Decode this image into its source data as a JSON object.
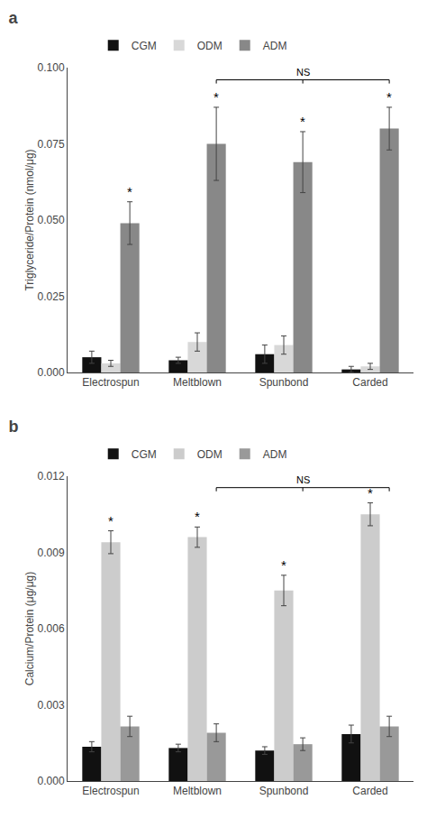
{
  "chart_data": [
    {
      "type": "bar",
      "title": "a",
      "ylabel": "Triglyceride/Protein (nmol/μg)",
      "categories": [
        "Electrospun",
        "Meltblown",
        "Spunbond",
        "Carded"
      ],
      "series": [
        {
          "name": "CGM",
          "color": "#111111",
          "values": [
            0.005,
            0.004,
            0.006,
            0.001
          ],
          "errors": [
            0.002,
            0.001,
            0.003,
            0.001
          ]
        },
        {
          "name": "ODM",
          "color": "#d8d8d8",
          "values": [
            0.003,
            0.01,
            0.009,
            0.002
          ],
          "errors": [
            0.001,
            0.003,
            0.003,
            0.001
          ]
        },
        {
          "name": "ADM",
          "color": "#888888",
          "values": [
            0.049,
            0.075,
            0.069,
            0.08
          ],
          "errors": [
            0.007,
            0.012,
            0.01,
            0.007
          ]
        }
      ],
      "ylim": [
        0,
        0.1
      ],
      "yticks": [
        {
          "value": 0.0,
          "label": "0.000"
        },
        {
          "value": 0.025,
          "label": "0.025"
        },
        {
          "value": 0.05,
          "label": "0.050"
        },
        {
          "value": 0.075,
          "label": "0.075"
        },
        {
          "value": 0.1,
          "label": "0.100"
        }
      ],
      "grid": false,
      "legend": "top",
      "annotations": [
        {
          "text": "*",
          "category": "Electrospun",
          "series": "ADM"
        },
        {
          "text": "*",
          "category": "Meltblown",
          "series": "ADM"
        },
        {
          "text": "*",
          "category": "Spunbond",
          "series": "ADM"
        },
        {
          "text": "*",
          "category": "Carded",
          "series": "ADM"
        },
        {
          "text": "NS",
          "y": 0.096,
          "from": "Meltblown",
          "to": "Carded",
          "series": "ADM"
        }
      ]
    },
    {
      "type": "bar",
      "title": "b",
      "ylabel": "Calcium/Protein (μg/μg)",
      "categories": [
        "Electrospun",
        "Meltblown",
        "Spunbond",
        "Carded"
      ],
      "series": [
        {
          "name": "CGM",
          "color": "#111111",
          "values": [
            0.00135,
            0.0013,
            0.0012,
            0.00185
          ],
          "errors": [
            0.0002,
            0.00015,
            0.00015,
            0.00035
          ]
        },
        {
          "name": "ODM",
          "color": "#cccccc",
          "values": [
            0.0094,
            0.0096,
            0.0075,
            0.0105
          ],
          "errors": [
            0.00045,
            0.0004,
            0.0006,
            0.00045
          ]
        },
        {
          "name": "ADM",
          "color": "#999999",
          "values": [
            0.00215,
            0.0019,
            0.00145,
            0.00215
          ],
          "errors": [
            0.0004,
            0.00035,
            0.00025,
            0.0004
          ]
        }
      ],
      "ylim": [
        0,
        0.012
      ],
      "yticks": [
        {
          "value": 0.0,
          "label": "0.000"
        },
        {
          "value": 0.003,
          "label": "0.003"
        },
        {
          "value": 0.006,
          "label": "0.006"
        },
        {
          "value": 0.009,
          "label": "0.009"
        },
        {
          "value": 0.012,
          "label": "0.012"
        }
      ],
      "grid": false,
      "legend": "top",
      "annotations": [
        {
          "text": "*",
          "category": "Electrospun",
          "series": "ODM"
        },
        {
          "text": "*",
          "category": "Meltblown",
          "series": "ODM"
        },
        {
          "text": "*",
          "category": "Spunbond",
          "series": "ODM"
        },
        {
          "text": "*",
          "category": "Carded",
          "series": "ODM"
        },
        {
          "text": "NS",
          "y": 0.01155,
          "from": "Meltblown",
          "to": "Carded",
          "series": "ADM"
        }
      ]
    }
  ]
}
